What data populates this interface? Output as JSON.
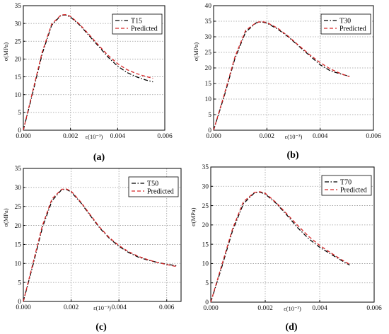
{
  "figure": {
    "captions": [
      "(a)",
      "(b)",
      "(c)",
      "(d)"
    ]
  },
  "chart_data": [
    {
      "type": "line",
      "caption": "(a)",
      "xlabel": "ε(10⁻³)",
      "ylabel": "σ(MPa)",
      "xlim": [
        0,
        0.006
      ],
      "ylim": [
        0,
        35
      ],
      "xticks": [
        0,
        0.002,
        0.004,
        0.006
      ],
      "xtick_labels": [
        "0.000",
        "0.002",
        "0.004",
        "0.006"
      ],
      "yticks": [
        0,
        5,
        10,
        15,
        20,
        25,
        30,
        35
      ],
      "grid": true,
      "legend_position": "top-right",
      "series": [
        {
          "name": "T15",
          "style": "dash-dot",
          "color": "#000000",
          "x": [
            0,
            0.0004,
            0.0008,
            0.0012,
            0.0016,
            0.0018,
            0.002,
            0.0024,
            0.0028,
            0.0032,
            0.0036,
            0.004,
            0.0044,
            0.0048,
            0.0052,
            0.0055
          ],
          "y": [
            0,
            10.5,
            21.5,
            29.5,
            32.3,
            32.4,
            31.8,
            29.5,
            26.5,
            23.5,
            20.5,
            18,
            16.2,
            15,
            14.1,
            13.6
          ]
        },
        {
          "name": "Predicted",
          "style": "dashed",
          "color": "#d62728",
          "x": [
            0,
            0.0004,
            0.0008,
            0.0012,
            0.0016,
            0.0018,
            0.002,
            0.0024,
            0.0028,
            0.0032,
            0.0036,
            0.004,
            0.0044,
            0.0048,
            0.0052,
            0.0055
          ],
          "y": [
            0,
            11,
            22,
            29.8,
            32.4,
            32.5,
            32,
            29.7,
            26.8,
            23.8,
            21,
            18.7,
            17,
            15.9,
            15.1,
            14.6
          ]
        }
      ]
    },
    {
      "type": "line",
      "caption": "(b)",
      "xlabel": "ε(10⁻³)",
      "ylabel": "σ(MPa)",
      "xlim": [
        0,
        0.006
      ],
      "ylim": [
        0,
        40
      ],
      "xticks": [
        0,
        0.002,
        0.004,
        0.006
      ],
      "xtick_labels": [
        "0.000",
        "0.002",
        "0.004",
        "0.006"
      ],
      "yticks": [
        0,
        5,
        10,
        15,
        20,
        25,
        30,
        35,
        40
      ],
      "grid": true,
      "legend_position": "top-right",
      "series": [
        {
          "name": "T30",
          "style": "dash-dot",
          "color": "#000000",
          "x": [
            0,
            0.0004,
            0.0008,
            0.0012,
            0.0016,
            0.0018,
            0.002,
            0.0024,
            0.0028,
            0.0032,
            0.0036,
            0.004,
            0.0044,
            0.0048,
            0.0051
          ],
          "y": [
            0,
            11,
            23,
            31.5,
            34.5,
            34.8,
            34.4,
            32.5,
            30,
            27,
            24,
            21,
            19,
            18,
            17.3
          ]
        },
        {
          "name": "Predicted",
          "style": "dashed",
          "color": "#d62728",
          "x": [
            0,
            0.0004,
            0.0008,
            0.0012,
            0.0016,
            0.0018,
            0.002,
            0.0024,
            0.0028,
            0.0032,
            0.0036,
            0.004,
            0.0044,
            0.0048,
            0.0051
          ],
          "y": [
            0,
            11.5,
            23.5,
            32,
            34.6,
            34.9,
            34.6,
            32.8,
            30.2,
            27.2,
            24.3,
            21.7,
            19.6,
            18.1,
            17.2
          ]
        }
      ]
    },
    {
      "type": "line",
      "caption": "(c)",
      "xlabel": "ε(10⁻³)",
      "ylabel": "σ(MPa)",
      "xlim": [
        0,
        0.0066
      ],
      "ylim": [
        0,
        35
      ],
      "xticks": [
        0,
        0.002,
        0.004,
        0.006
      ],
      "xtick_labels": [
        "0.000",
        "0.002",
        "0.004",
        "0.006"
      ],
      "yticks": [
        0,
        5,
        10,
        15,
        20,
        25,
        30,
        35
      ],
      "grid": true,
      "legend_position": "top-right",
      "series": [
        {
          "name": "T50",
          "style": "dash-dot",
          "color": "#000000",
          "x": [
            0,
            0.0004,
            0.0008,
            0.0012,
            0.0016,
            0.0018,
            0.002,
            0.0024,
            0.0028,
            0.0032,
            0.0036,
            0.004,
            0.0044,
            0.0048,
            0.0052,
            0.0056,
            0.006,
            0.0064
          ],
          "y": [
            0,
            9.5,
            19.5,
            26.5,
            29.4,
            29.5,
            28.8,
            26,
            22.6,
            19.3,
            16.6,
            14.5,
            12.9,
            11.7,
            10.9,
            10.3,
            9.8,
            9.4
          ]
        },
        {
          "name": "Predicted",
          "style": "dashed",
          "color": "#d62728",
          "x": [
            0,
            0.0004,
            0.0008,
            0.0012,
            0.0016,
            0.0018,
            0.002,
            0.0024,
            0.0028,
            0.0032,
            0.0036,
            0.004,
            0.0044,
            0.0048,
            0.0052,
            0.0056,
            0.006,
            0.0064
          ],
          "y": [
            0,
            10,
            20,
            27,
            29.5,
            29.6,
            29,
            26.2,
            22.8,
            19.5,
            16.8,
            14.7,
            13.1,
            11.9,
            11,
            10.3,
            9.7,
            9.2
          ]
        }
      ]
    },
    {
      "type": "line",
      "caption": "(d)",
      "xlabel": "ε(10⁻³)",
      "ylabel": "σ(MPa)",
      "xlim": [
        0,
        0.006
      ],
      "ylim": [
        0,
        35
      ],
      "xticks": [
        0,
        0.002,
        0.004,
        0.006
      ],
      "xtick_labels": [
        "0.000",
        "0.002",
        "0.004",
        "0.006"
      ],
      "yticks": [
        0,
        5,
        10,
        15,
        20,
        25,
        30,
        35
      ],
      "grid": true,
      "legend_position": "top-right",
      "series": [
        {
          "name": "T70",
          "style": "dash-dot",
          "color": "#000000",
          "x": [
            0,
            0.0004,
            0.0008,
            0.0012,
            0.0016,
            0.0018,
            0.002,
            0.0024,
            0.0028,
            0.0032,
            0.0036,
            0.004,
            0.0044,
            0.0048,
            0.0051
          ],
          "y": [
            0,
            9,
            18.5,
            25.5,
            28.3,
            28.5,
            28,
            25.6,
            22.5,
            19.2,
            16.4,
            14.2,
            12.5,
            10.8,
            9.6
          ]
        },
        {
          "name": "Predicted",
          "style": "dashed",
          "color": "#d62728",
          "x": [
            0,
            0.0004,
            0.0008,
            0.0012,
            0.0016,
            0.0018,
            0.002,
            0.0024,
            0.0028,
            0.0032,
            0.0036,
            0.004,
            0.0044,
            0.0048,
            0.0051
          ],
          "y": [
            0,
            9.5,
            19,
            26,
            28.4,
            28.6,
            28.2,
            25.8,
            22.8,
            19.8,
            17,
            14.7,
            12.8,
            11,
            9.8
          ]
        }
      ]
    }
  ]
}
